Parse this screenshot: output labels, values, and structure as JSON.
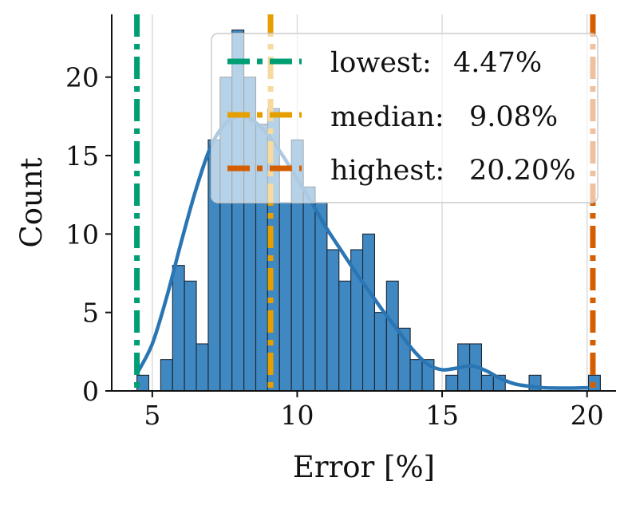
{
  "chart_data": {
    "type": "histogram",
    "xlabel": "Error [%]",
    "ylabel": "Count",
    "xlim": [
      3.6,
      21.0
    ],
    "ylim": [
      0,
      24
    ],
    "xticks": [
      5,
      10,
      15,
      20
    ],
    "yticks": [
      0,
      5,
      10,
      15,
      20
    ],
    "grid": "vertical",
    "bar_color": "#3f88c2",
    "kde_color": "#2a75b3",
    "bins": [
      {
        "x0": 4.47,
        "x1": 4.88,
        "count": 1
      },
      {
        "x0": 4.88,
        "x1": 5.29,
        "count": 0
      },
      {
        "x0": 5.29,
        "x1": 5.7,
        "count": 2
      },
      {
        "x0": 5.7,
        "x1": 6.11,
        "count": 8
      },
      {
        "x0": 6.11,
        "x1": 6.52,
        "count": 7
      },
      {
        "x0": 6.52,
        "x1": 6.93,
        "count": 3
      },
      {
        "x0": 6.93,
        "x1": 7.34,
        "count": 16
      },
      {
        "x0": 7.34,
        "x1": 7.75,
        "count": 20
      },
      {
        "x0": 7.75,
        "x1": 8.16,
        "count": 23
      },
      {
        "x0": 8.16,
        "x1": 8.57,
        "count": 20
      },
      {
        "x0": 8.57,
        "x1": 8.98,
        "count": 17
      },
      {
        "x0": 8.98,
        "x1": 9.39,
        "count": 18
      },
      {
        "x0": 9.39,
        "x1": 9.8,
        "count": 12
      },
      {
        "x0": 9.8,
        "x1": 10.21,
        "count": 16
      },
      {
        "x0": 10.21,
        "x1": 10.62,
        "count": 13
      },
      {
        "x0": 10.62,
        "x1": 11.03,
        "count": 12
      },
      {
        "x0": 11.03,
        "x1": 11.44,
        "count": 9
      },
      {
        "x0": 11.44,
        "x1": 11.85,
        "count": 7
      },
      {
        "x0": 11.85,
        "x1": 12.26,
        "count": 9
      },
      {
        "x0": 12.26,
        "x1": 12.67,
        "count": 10
      },
      {
        "x0": 12.67,
        "x1": 13.08,
        "count": 5
      },
      {
        "x0": 13.08,
        "x1": 13.49,
        "count": 7
      },
      {
        "x0": 13.49,
        "x1": 13.9,
        "count": 4
      },
      {
        "x0": 13.9,
        "x1": 14.31,
        "count": 2
      },
      {
        "x0": 14.31,
        "x1": 14.72,
        "count": 2
      },
      {
        "x0": 14.72,
        "x1": 15.13,
        "count": 0
      },
      {
        "x0": 15.13,
        "x1": 15.54,
        "count": 1
      },
      {
        "x0": 15.54,
        "x1": 15.95,
        "count": 3
      },
      {
        "x0": 15.95,
        "x1": 16.36,
        "count": 3
      },
      {
        "x0": 16.36,
        "x1": 16.77,
        "count": 1
      },
      {
        "x0": 16.77,
        "x1": 17.18,
        "count": 1
      },
      {
        "x0": 17.18,
        "x1": 17.59,
        "count": 0
      },
      {
        "x0": 17.59,
        "x1": 18.0,
        "count": 0
      },
      {
        "x0": 18.0,
        "x1": 18.41,
        "count": 1
      },
      {
        "x0": 18.41,
        "x1": 18.82,
        "count": 0
      },
      {
        "x0": 18.82,
        "x1": 19.23,
        "count": 0
      },
      {
        "x0": 19.23,
        "x1": 19.64,
        "count": 0
      },
      {
        "x0": 19.64,
        "x1": 20.05,
        "count": 0
      },
      {
        "x0": 20.05,
        "x1": 20.46,
        "count": 1
      }
    ],
    "kde": {
      "x": [
        4.5,
        5.0,
        5.5,
        6.0,
        6.5,
        7.0,
        7.5,
        8.0,
        8.5,
        9.0,
        9.5,
        10.0,
        10.5,
        11.0,
        11.5,
        12.0,
        12.5,
        13.0,
        13.5,
        14.0,
        14.5,
        15.0,
        15.5,
        16.0,
        16.5,
        17.0,
        17.5,
        18.0,
        18.5,
        19.0,
        19.5,
        20.0
      ],
      "y": [
        1.2,
        3.0,
        6.0,
        9.5,
        12.8,
        15.5,
        17.0,
        17.5,
        17.2,
        16.3,
        15.0,
        13.5,
        12.0,
        10.4,
        9.0,
        7.6,
        6.3,
        5.0,
        3.8,
        2.6,
        1.7,
        1.35,
        1.45,
        1.6,
        1.3,
        0.8,
        0.45,
        0.3,
        0.2,
        0.18,
        0.18,
        0.2
      ]
    },
    "vlines": [
      {
        "name": "lowest",
        "x": 4.47,
        "color": "#009e73"
      },
      {
        "name": "median",
        "x": 9.08,
        "color": "#e69f00"
      },
      {
        "name": "highest",
        "x": 20.2,
        "color": "#d55e00"
      }
    ],
    "legend": {
      "position": "upper-right",
      "entries": [
        {
          "label": "lowest:",
          "value": "4.47%",
          "color": "#009e73"
        },
        {
          "label": "median:",
          "value": "9.08%",
          "color": "#e69f00"
        },
        {
          "label": "highest:",
          "value": "20.20%",
          "color": "#d55e00"
        }
      ]
    }
  }
}
